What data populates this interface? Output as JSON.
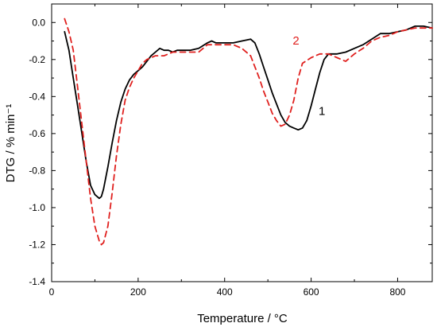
{
  "chart_data": {
    "type": "line",
    "title": "",
    "xlabel": "Temperature / °C",
    "ylabel": "DTG / % min⁻¹",
    "xlim": [
      0,
      880
    ],
    "ylim": [
      -1.4,
      0.1
    ],
    "xticks": [
      0,
      200,
      400,
      600,
      800
    ],
    "xtick_labels": [
      "0",
      "200",
      "400",
      "600",
      "800"
    ],
    "yticks": [
      0.0,
      -0.2,
      -0.4,
      -0.6,
      -0.8,
      -1.0,
      -1.2,
      -1.4
    ],
    "ytick_labels": [
      "0.0",
      "-0.2",
      "-0.4",
      "-0.6",
      "-0.8",
      "-1.0",
      "-1.2",
      "-1.4"
    ],
    "grid": false,
    "legend": "none",
    "series": [
      {
        "name": "1",
        "color": "#000000",
        "style": "solid",
        "x": [
          30,
          40,
          50,
          60,
          70,
          80,
          90,
          100,
          110,
          115,
          120,
          130,
          140,
          150,
          160,
          170,
          180,
          190,
          200,
          210,
          220,
          230,
          240,
          250,
          260,
          270,
          280,
          290,
          300,
          320,
          340,
          360,
          370,
          380,
          400,
          420,
          440,
          460,
          470,
          480,
          490,
          500,
          510,
          520,
          530,
          540,
          550,
          560,
          570,
          580,
          590,
          600,
          610,
          620,
          630,
          640,
          650,
          660,
          680,
          700,
          720,
          740,
          760,
          780,
          800,
          820,
          840,
          860,
          880
        ],
        "y": [
          -0.05,
          -0.15,
          -0.3,
          -0.45,
          -0.6,
          -0.75,
          -0.88,
          -0.93,
          -0.95,
          -0.94,
          -0.9,
          -0.78,
          -0.65,
          -0.53,
          -0.43,
          -0.36,
          -0.31,
          -0.28,
          -0.26,
          -0.24,
          -0.21,
          -0.18,
          -0.16,
          -0.14,
          -0.15,
          -0.15,
          -0.16,
          -0.15,
          -0.15,
          -0.15,
          -0.14,
          -0.11,
          -0.1,
          -0.11,
          -0.11,
          -0.11,
          -0.1,
          -0.09,
          -0.11,
          -0.17,
          -0.24,
          -0.31,
          -0.38,
          -0.44,
          -0.5,
          -0.54,
          -0.56,
          -0.57,
          -0.58,
          -0.57,
          -0.53,
          -0.45,
          -0.36,
          -0.27,
          -0.2,
          -0.17,
          -0.17,
          -0.17,
          -0.16,
          -0.14,
          -0.12,
          -0.09,
          -0.06,
          -0.06,
          -0.05,
          -0.04,
          -0.02,
          -0.02,
          -0.03
        ]
      },
      {
        "name": "2",
        "color": "#e0201e",
        "style": "dashed",
        "x": [
          30,
          40,
          50,
          60,
          70,
          80,
          90,
          100,
          110,
          115,
          120,
          130,
          140,
          150,
          160,
          170,
          180,
          190,
          200,
          210,
          220,
          240,
          260,
          280,
          300,
          320,
          340,
          360,
          380,
          400,
          420,
          440,
          460,
          480,
          490,
          500,
          510,
          520,
          530,
          540,
          550,
          560,
          570,
          580,
          600,
          620,
          640,
          660,
          680,
          700,
          720,
          740,
          760,
          780,
          800,
          820,
          840,
          860,
          880
        ],
        "y": [
          0.02,
          -0.05,
          -0.15,
          -0.35,
          -0.55,
          -0.75,
          -0.95,
          -1.1,
          -1.18,
          -1.2,
          -1.19,
          -1.1,
          -0.92,
          -0.72,
          -0.55,
          -0.42,
          -0.35,
          -0.3,
          -0.26,
          -0.22,
          -0.2,
          -0.18,
          -0.18,
          -0.16,
          -0.16,
          -0.16,
          -0.16,
          -0.12,
          -0.12,
          -0.12,
          -0.12,
          -0.14,
          -0.18,
          -0.3,
          -0.37,
          -0.43,
          -0.49,
          -0.53,
          -0.56,
          -0.55,
          -0.5,
          -0.42,
          -0.3,
          -0.22,
          -0.19,
          -0.17,
          -0.17,
          -0.19,
          -0.21,
          -0.17,
          -0.14,
          -0.1,
          -0.08,
          -0.07,
          -0.05,
          -0.04,
          -0.03,
          -0.03,
          -0.03
        ]
      }
    ],
    "annotations": [
      {
        "text": "1",
        "x": 625,
        "y": -0.5,
        "color": "#000000"
      },
      {
        "text": "2",
        "x": 565,
        "y": -0.12,
        "color": "#e0201e"
      }
    ]
  }
}
